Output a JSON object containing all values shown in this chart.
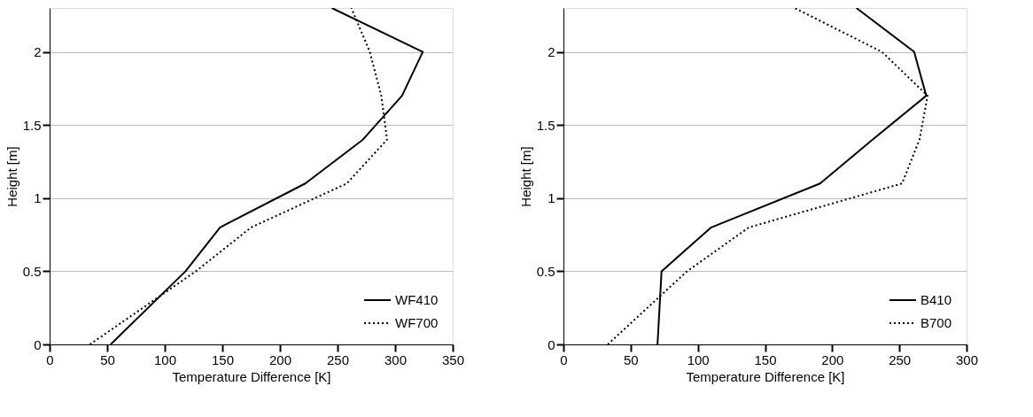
{
  "chart_data": [
    {
      "type": "line",
      "xlabel": "Temperature Difference [K]",
      "ylabel": "Height [m]",
      "xlim": [
        0,
        350
      ],
      "xticks": [
        0,
        50,
        100,
        150,
        200,
        250,
        300,
        350
      ],
      "ylim": [
        0,
        2.3
      ],
      "yticks": [
        0,
        0.5,
        1,
        1.5,
        2
      ],
      "grid": "y",
      "legend": "bottom right",
      "series": [
        {
          "name": "WF410",
          "color": "#000000",
          "line_style": "solid",
          "x": [
            53,
            118,
            148,
            222,
            272,
            306,
            324,
            245
          ],
          "values": [
            0,
            0.5,
            0.8,
            1.1,
            1.4,
            1.7,
            2.0,
            2.3
          ]
        },
        {
          "name": "WF700",
          "color": "#000000",
          "line_style": "dotted",
          "x": [
            35,
            127,
            175,
            258,
            293,
            288,
            278,
            262
          ],
          "values": [
            0,
            0.5,
            0.8,
            1.1,
            1.4,
            1.7,
            2.0,
            2.3
          ]
        }
      ]
    },
    {
      "type": "line",
      "xlabel": "Temperature Difference [K]",
      "ylabel": "Height [m]",
      "xlim": [
        0,
        300
      ],
      "xticks": [
        0,
        50,
        100,
        150,
        200,
        250,
        300
      ],
      "ylim": [
        0,
        2.3
      ],
      "yticks": [
        0,
        0.5,
        1,
        1.5,
        2
      ],
      "grid": "y",
      "legend": "bottom right",
      "series": [
        {
          "name": "B410",
          "color": "#000000",
          "line_style": "solid",
          "x": [
            70,
            73,
            110,
            191,
            230,
            270,
            261,
            218
          ],
          "values": [
            0,
            0.5,
            0.8,
            1.1,
            1.4,
            1.7,
            2.0,
            2.3
          ]
        },
        {
          "name": "B700",
          "color": "#000000",
          "line_style": "dotted",
          "x": [
            33,
            92,
            138,
            252,
            265,
            271,
            237,
            172
          ],
          "values": [
            0,
            0.5,
            0.8,
            1.1,
            1.4,
            1.7,
            2.0,
            2.3
          ]
        }
      ]
    }
  ]
}
